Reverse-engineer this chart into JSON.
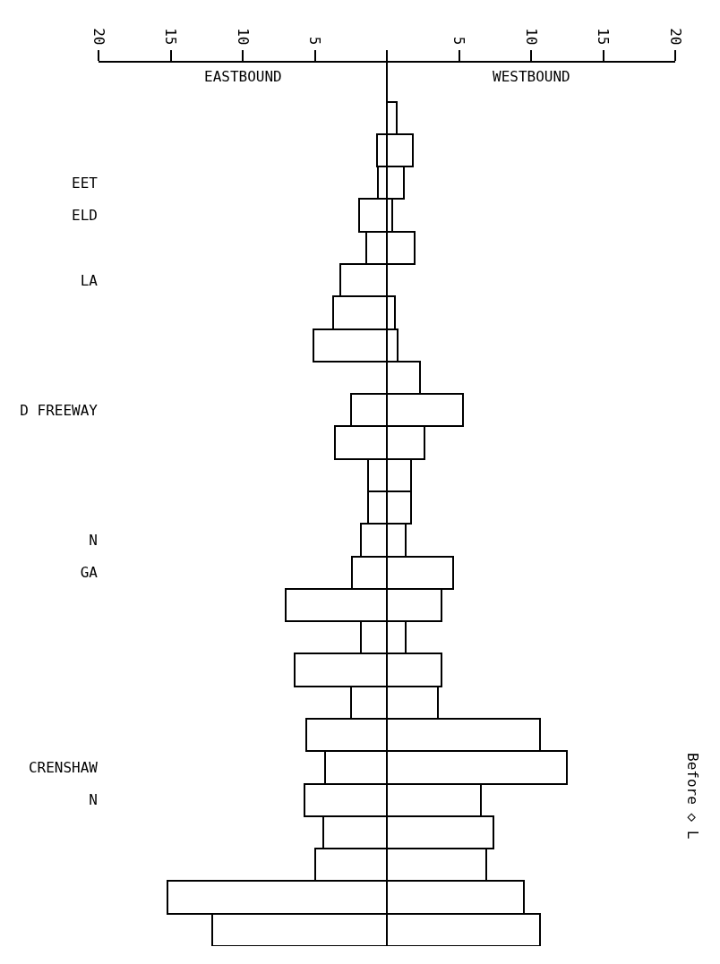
{
  "chart_data": {
    "type": "bar",
    "orientation": "horizontal",
    "stacked": true,
    "categories": [
      null,
      null,
      "EET",
      "ELD",
      null,
      "LA",
      null,
      null,
      null,
      "D FREEWAY",
      null,
      null,
      null,
      "N",
      "GA",
      null,
      null,
      null,
      null,
      null,
      "CRENSHAW",
      "N",
      null,
      null,
      null,
      null
    ],
    "series": [
      {
        "color": "#ffffff",
        "values": [
          null,
          -0.7,
          -0.6,
          -1.9,
          -1.4,
          -3.2,
          -3.7,
          -5.1,
          null,
          -2.5,
          -3.6,
          -1.3,
          -1.3,
          -1.8,
          -2.4,
          -7.0,
          -1.8,
          -6.4,
          -2.5,
          -5.6,
          -4.3,
          -5.7,
          -4.4,
          -5.0,
          -15.2,
          -12.1
        ]
      },
      {
        "color": "#ffffff",
        "values": [
          0.7,
          1.8,
          1.15,
          0.4,
          1.9,
          null,
          0.55,
          0.75,
          2.3,
          5.3,
          2.6,
          1.65,
          1.65,
          1.3,
          4.6,
          3.8,
          1.3,
          3.8,
          3.55,
          10.6,
          12.5,
          6.5,
          7.4,
          6.9,
          9.5,
          10.6
        ]
      }
    ],
    "xlim": [
      -20,
      20
    ],
    "xticks": [
      {
        "value": -20,
        "label": "20"
      },
      {
        "value": -15,
        "label": "15"
      },
      {
        "value": -10,
        "label": "10"
      },
      {
        "value": -5,
        "label": "5"
      },
      {
        "value": 0,
        "label": null
      },
      5,
      10,
      15,
      20
    ],
    "ref_lines": [
      {
        "axis": "x",
        "value": 0,
        "color": "#000000"
      }
    ],
    "legend": false,
    "annotations": [
      "EASTBOUND",
      "WESTBOUND",
      "Before ◇ L"
    ]
  }
}
